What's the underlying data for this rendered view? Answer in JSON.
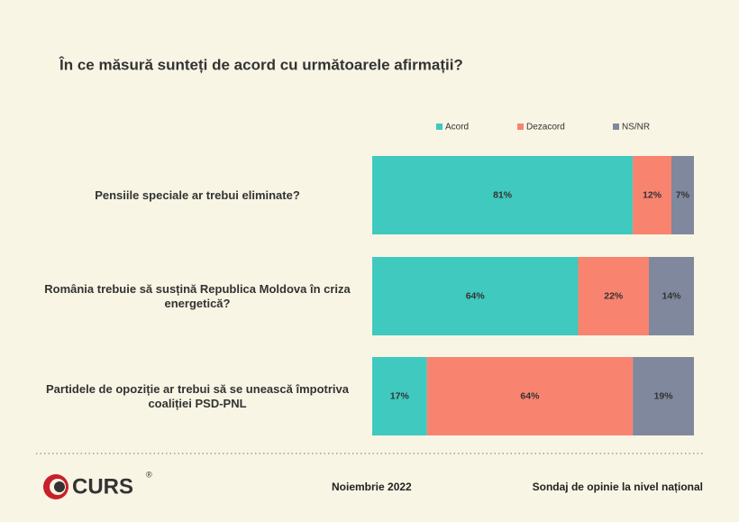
{
  "chart_data": {
    "type": "stacked-bar-horizontal",
    "title": "În ce măsură sunteți de acord cu următoarele afirmații?",
    "categories": [
      "Pensiile speciale ar trebui eliminate?",
      "România trebuie să susțină Republica Moldova în criza energetică?",
      "Partidele de opoziție ar trebui să se unească împotriva coaliției PSD-PNL"
    ],
    "series": [
      {
        "name": "Acord",
        "color": "#3fc9bf",
        "values": [
          81,
          64,
          17
        ],
        "value_labels": [
          "81%",
          "64%",
          "17%"
        ]
      },
      {
        "name": "Dezacord",
        "color": "#f8836f",
        "values": [
          12,
          22,
          64
        ],
        "value_labels": [
          "12%",
          "22%",
          "64%"
        ]
      },
      {
        "name": "NS/NR",
        "color": "#7f889c",
        "values": [
          7,
          14,
          19
        ],
        "value_labels": [
          "7%",
          "14%",
          "19%"
        ]
      }
    ],
    "legend": "top"
  },
  "footer": {
    "logo": "CURS",
    "registered": "®",
    "date": "Noiembrie 2022",
    "source": "Sondaj de opinie la nivel național"
  }
}
